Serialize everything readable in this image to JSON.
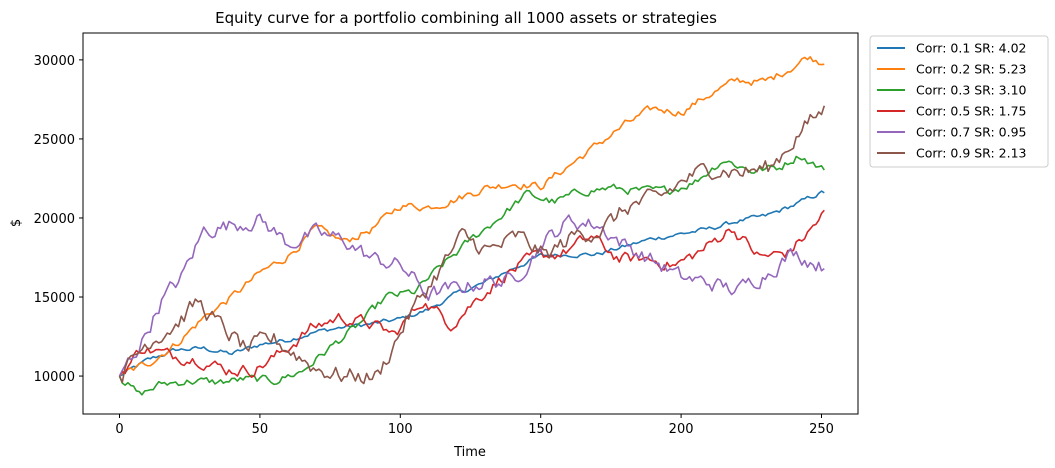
{
  "chart_data": {
    "type": "line",
    "title": "Equity curve for a portfolio combining all 1000 assets or strategies",
    "xlabel": "Time",
    "ylabel": "$",
    "xlim": [
      -13,
      263
    ],
    "ylim": [
      7600,
      31700
    ],
    "xticks": [
      0,
      50,
      100,
      150,
      200,
      250
    ],
    "yticks": [
      10000,
      15000,
      20000,
      25000,
      30000
    ],
    "xtick_labels": [
      "0",
      "50",
      "100",
      "150",
      "200",
      "250"
    ],
    "ytick_labels": [
      "10000",
      "15000",
      "20000",
      "25000",
      "30000"
    ],
    "grid": false,
    "legend_position": "outside-top-right",
    "noise_seed": 12345,
    "series": [
      {
        "name": "Corr: 0.1 SR: 4.02",
        "color": "#1f77b4",
        "noise": 130,
        "points": [
          [
            0,
            10000
          ],
          [
            10,
            11000
          ],
          [
            20,
            11650
          ],
          [
            30,
            11750
          ],
          [
            40,
            11400
          ],
          [
            50,
            12000
          ],
          [
            60,
            12300
          ],
          [
            70,
            12800
          ],
          [
            80,
            13100
          ],
          [
            90,
            13300
          ],
          [
            100,
            13600
          ],
          [
            110,
            14200
          ],
          [
            120,
            15200
          ],
          [
            130,
            15900
          ],
          [
            140,
            16800
          ],
          [
            150,
            17600
          ],
          [
            160,
            17700
          ],
          [
            170,
            17700
          ],
          [
            180,
            18200
          ],
          [
            190,
            18700
          ],
          [
            200,
            19000
          ],
          [
            210,
            19300
          ],
          [
            220,
            19800
          ],
          [
            230,
            20100
          ],
          [
            240,
            20800
          ],
          [
            250,
            21600
          ]
        ]
      },
      {
        "name": "Corr: 0.2 SR: 5.23",
        "color": "#ff7f0e",
        "noise": 220,
        "points": [
          [
            0,
            10000
          ],
          [
            10,
            10800
          ],
          [
            20,
            12000
          ],
          [
            30,
            13700
          ],
          [
            40,
            15000
          ],
          [
            50,
            16500
          ],
          [
            60,
            17600
          ],
          [
            70,
            19300
          ],
          [
            80,
            18500
          ],
          [
            90,
            19300
          ],
          [
            100,
            20800
          ],
          [
            110,
            20700
          ],
          [
            120,
            21200
          ],
          [
            130,
            21900
          ],
          [
            140,
            22200
          ],
          [
            150,
            22000
          ],
          [
            160,
            23300
          ],
          [
            170,
            24600
          ],
          [
            180,
            25900
          ],
          [
            190,
            26900
          ],
          [
            200,
            26700
          ],
          [
            210,
            27800
          ],
          [
            220,
            28700
          ],
          [
            230,
            28600
          ],
          [
            240,
            29600
          ],
          [
            245,
            30200
          ],
          [
            250,
            29900
          ]
        ]
      },
      {
        "name": "Corr: 0.3 SR: 3.10",
        "color": "#2ca02c",
        "noise": 230,
        "points": [
          [
            0,
            10000
          ],
          [
            7,
            8800
          ],
          [
            15,
            9500
          ],
          [
            25,
            9700
          ],
          [
            35,
            9600
          ],
          [
            45,
            9800
          ],
          [
            55,
            9700
          ],
          [
            65,
            10300
          ],
          [
            75,
            11800
          ],
          [
            85,
            13200
          ],
          [
            95,
            15000
          ],
          [
            105,
            15300
          ],
          [
            115,
            17000
          ],
          [
            125,
            18600
          ],
          [
            135,
            20000
          ],
          [
            145,
            21500
          ],
          [
            155,
            21000
          ],
          [
            165,
            21700
          ],
          [
            175,
            21900
          ],
          [
            185,
            21700
          ],
          [
            195,
            21700
          ],
          [
            205,
            22300
          ],
          [
            215,
            23700
          ],
          [
            225,
            23000
          ],
          [
            235,
            23200
          ],
          [
            242,
            24000
          ],
          [
            250,
            23100
          ]
        ]
      },
      {
        "name": "Corr: 0.5 SR: 1.75",
        "color": "#d62728",
        "noise": 330,
        "points": [
          [
            0,
            10000
          ],
          [
            8,
            11800
          ],
          [
            18,
            11300
          ],
          [
            28,
            11100
          ],
          [
            38,
            10400
          ],
          [
            48,
            10400
          ],
          [
            58,
            11500
          ],
          [
            68,
            13000
          ],
          [
            78,
            13700
          ],
          [
            88,
            13400
          ],
          [
            98,
            12600
          ],
          [
            108,
            14800
          ],
          [
            118,
            13300
          ],
          [
            128,
            15000
          ],
          [
            138,
            16500
          ],
          [
            148,
            17500
          ],
          [
            158,
            17800
          ],
          [
            168,
            18800
          ],
          [
            178,
            17400
          ],
          [
            188,
            17400
          ],
          [
            198,
            17000
          ],
          [
            208,
            18000
          ],
          [
            218,
            19400
          ],
          [
            228,
            17500
          ],
          [
            238,
            17800
          ],
          [
            245,
            19000
          ],
          [
            251,
            20300
          ]
        ]
      },
      {
        "name": "Corr: 0.7 SR: 0.95",
        "color": "#9467bd",
        "noise": 430,
        "points": [
          [
            0,
            10000
          ],
          [
            8,
            12200
          ],
          [
            15,
            14800
          ],
          [
            22,
            16200
          ],
          [
            30,
            19200
          ],
          [
            40,
            19600
          ],
          [
            50,
            19900
          ],
          [
            60,
            18400
          ],
          [
            70,
            19000
          ],
          [
            80,
            18600
          ],
          [
            90,
            17400
          ],
          [
            100,
            17000
          ],
          [
            110,
            15200
          ],
          [
            120,
            15500
          ],
          [
            130,
            16000
          ],
          [
            140,
            16000
          ],
          [
            150,
            18300
          ],
          [
            160,
            19800
          ],
          [
            170,
            19600
          ],
          [
            180,
            18300
          ],
          [
            190,
            17300
          ],
          [
            200,
            16200
          ],
          [
            210,
            15900
          ],
          [
            220,
            15400
          ],
          [
            230,
            16500
          ],
          [
            240,
            17800
          ],
          [
            250,
            17000
          ]
        ]
      },
      {
        "name": "Corr: 0.9 SR: 2.13",
        "color": "#8c564b",
        "noise": 480,
        "points": [
          [
            0,
            10000
          ],
          [
            10,
            12200
          ],
          [
            20,
            13300
          ],
          [
            28,
            14700
          ],
          [
            35,
            13300
          ],
          [
            45,
            11700
          ],
          [
            55,
            12300
          ],
          [
            62,
            11500
          ],
          [
            70,
            10500
          ],
          [
            80,
            10000
          ],
          [
            92,
            10000
          ],
          [
            102,
            13500
          ],
          [
            112,
            16200
          ],
          [
            122,
            18800
          ],
          [
            132,
            17900
          ],
          [
            142,
            18800
          ],
          [
            152,
            17600
          ],
          [
            162,
            18900
          ],
          [
            172,
            19300
          ],
          [
            182,
            20800
          ],
          [
            192,
            21200
          ],
          [
            202,
            22500
          ],
          [
            212,
            23200
          ],
          [
            222,
            22900
          ],
          [
            232,
            23200
          ],
          [
            242,
            25400
          ],
          [
            251,
            26900
          ]
        ]
      }
    ]
  }
}
